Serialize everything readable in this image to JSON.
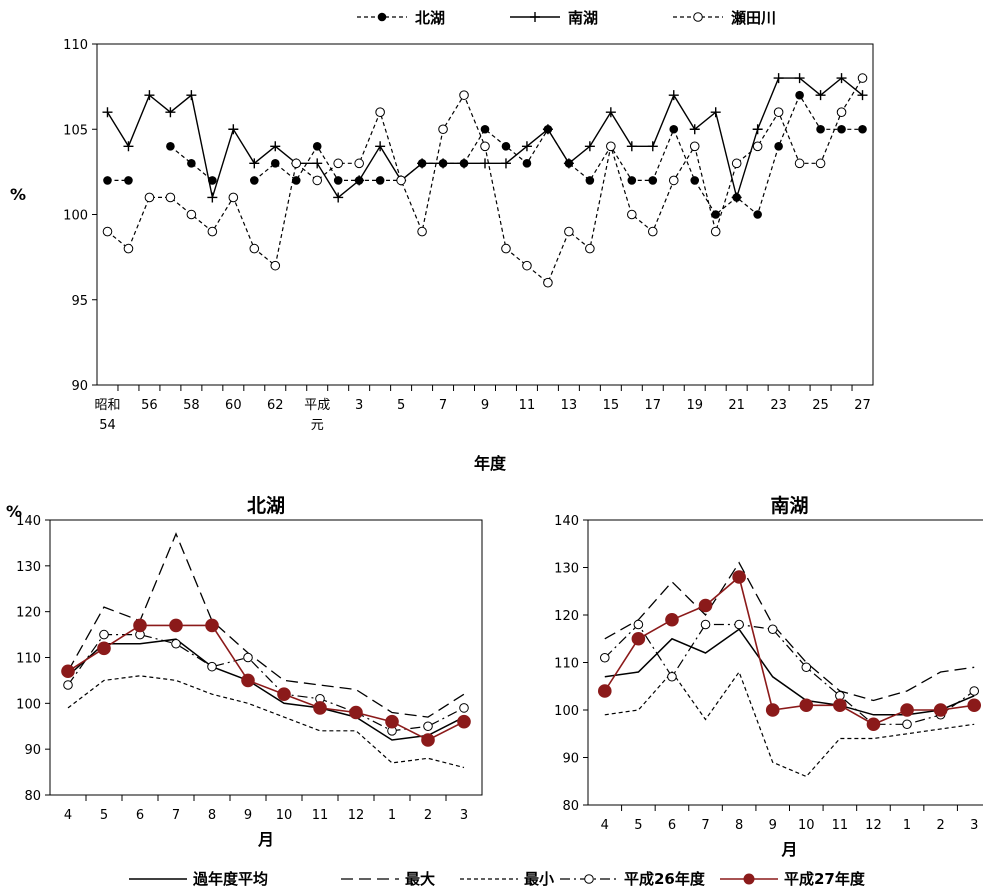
{
  "top_chart": {
    "ylabel": "%",
    "xlabel": "年度",
    "x_tick_labels": [
      "昭和\n54",
      "56",
      "58",
      "60",
      "62",
      "平成\n元",
      "3",
      "5",
      "7",
      "9",
      "11",
      "13",
      "15",
      "17",
      "19",
      "21",
      "23",
      "25",
      "27"
    ],
    "legend": [
      "北湖",
      "南湖",
      "瀬田川"
    ]
  },
  "bottom_legend": [
    "過年度平均",
    "最大",
    "最小",
    "平成26年度",
    "平成27年度"
  ],
  "colors": {
    "fy27": "#8b1a1a",
    "line": "#000000"
  },
  "chart_data": [
    {
      "type": "line",
      "title": "",
      "xlabel": "年度",
      "ylabel": "%",
      "ylim": [
        90,
        110
      ],
      "yticks": [
        90,
        95,
        100,
        105,
        110
      ],
      "grid": false,
      "legend_position": "top",
      "x": [
        "昭和54",
        "55",
        "56",
        "57",
        "58",
        "59",
        "60",
        "61",
        "62",
        "63",
        "平成元",
        "2",
        "3",
        "4",
        "5",
        "6",
        "7",
        "8",
        "9",
        "10",
        "11",
        "12",
        "13",
        "14",
        "15",
        "16",
        "17",
        "18",
        "19",
        "20",
        "21",
        "22",
        "23",
        "24",
        "25",
        "26",
        "27"
      ],
      "series": [
        {
          "name": "北湖",
          "style": "dashed-filled-circle",
          "values": [
            102,
            102,
            null,
            104,
            103,
            102,
            null,
            102,
            103,
            102,
            104,
            102,
            102,
            102,
            102,
            103,
            103,
            103,
            105,
            104,
            103,
            105,
            103,
            102,
            104,
            102,
            102,
            105,
            102,
            100,
            101,
            100,
            104,
            107,
            105,
            105,
            105
          ]
        },
        {
          "name": "南湖",
          "style": "solid-plus",
          "values": [
            106,
            104,
            107,
            106,
            107,
            101,
            105,
            103,
            104,
            103,
            103,
            101,
            102,
            104,
            102,
            103,
            103,
            103,
            103,
            103,
            104,
            105,
            103,
            104,
            106,
            104,
            104,
            107,
            105,
            106,
            101,
            105,
            108,
            108,
            107,
            108,
            107
          ]
        },
        {
          "name": "瀬田川",
          "style": "dashed-open-circle",
          "values": [
            99,
            98,
            101,
            101,
            100,
            99,
            101,
            98,
            97,
            103,
            102,
            103,
            103,
            106,
            102,
            99,
            105,
            107,
            104,
            98,
            97,
            96,
            99,
            98,
            104,
            100,
            99,
            102,
            104,
            99,
            103,
            104,
            106,
            103,
            103,
            106,
            108
          ]
        }
      ]
    },
    {
      "type": "line",
      "title": "北湖",
      "xlabel": "月",
      "ylabel": "%",
      "ylim": [
        80,
        140
      ],
      "yticks": [
        80,
        90,
        100,
        110,
        120,
        130,
        140
      ],
      "grid": false,
      "categories": [
        "4",
        "5",
        "6",
        "7",
        "8",
        "9",
        "10",
        "11",
        "12",
        "1",
        "2",
        "3"
      ],
      "series": [
        {
          "name": "過年度平均",
          "style": "solid",
          "values": [
            106,
            113,
            113,
            114,
            108,
            105,
            100,
            99,
            97,
            92,
            93,
            97
          ]
        },
        {
          "name": "最大",
          "style": "long-dash",
          "values": [
            107,
            121,
            118,
            137,
            118,
            111,
            105,
            104,
            103,
            98,
            97,
            102
          ]
        },
        {
          "name": "最小",
          "style": "short-dash",
          "values": [
            99,
            105,
            106,
            105,
            102,
            100,
            97,
            94,
            94,
            87,
            88,
            86
          ]
        },
        {
          "name": "平成26年度",
          "style": "dash-dot-open-circle",
          "values": [
            104,
            115,
            115,
            113,
            108,
            110,
            102,
            101,
            98,
            94,
            95,
            99
          ]
        },
        {
          "name": "平成27年度",
          "style": "solid-dark-red-filled-circle",
          "values": [
            107,
            112,
            117,
            117,
            117,
            105,
            102,
            99,
            98,
            96,
            92,
            96
          ]
        }
      ]
    },
    {
      "type": "line",
      "title": "南湖",
      "xlabel": "月",
      "ylabel": "",
      "ylim": [
        80,
        140
      ],
      "yticks": [
        80,
        90,
        100,
        110,
        120,
        130,
        140
      ],
      "grid": false,
      "categories": [
        "4",
        "5",
        "6",
        "7",
        "8",
        "9",
        "10",
        "11",
        "12",
        "1",
        "2",
        "3"
      ],
      "series": [
        {
          "name": "過年度平均",
          "style": "solid",
          "values": [
            107,
            108,
            115,
            112,
            117,
            107,
            102,
            101,
            99,
            99,
            100,
            103
          ]
        },
        {
          "name": "最大",
          "style": "long-dash",
          "values": [
            115,
            119,
            127,
            120,
            131,
            118,
            110,
            104,
            102,
            104,
            108,
            109
          ]
        },
        {
          "name": "最小",
          "style": "short-dash",
          "values": [
            99,
            100,
            108,
            98,
            108,
            89,
            86,
            94,
            94,
            95,
            96,
            97
          ]
        },
        {
          "name": "平成26年度",
          "style": "dash-dot-open-circle",
          "values": [
            111,
            118,
            107,
            118,
            118,
            117,
            109,
            103,
            97,
            97,
            99,
            104
          ]
        },
        {
          "name": "平成27年度",
          "style": "solid-dark-red-filled-circle",
          "values": [
            104,
            115,
            119,
            122,
            128,
            100,
            101,
            101,
            97,
            100,
            100,
            101
          ]
        }
      ]
    }
  ]
}
